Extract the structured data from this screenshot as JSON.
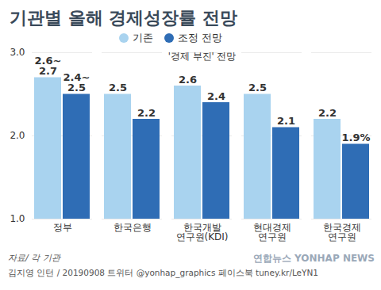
{
  "chart_data": {
    "type": "bar",
    "title": "기관별 올해 경제성장률 전망",
    "categories": [
      "정부",
      "한국은행",
      "한국개발\n연구원(KDI)",
      "현대경제\n연구원",
      "한국경제\n연구원"
    ],
    "series": [
      {
        "name": "기존",
        "color": "#a9d3ef",
        "values": [
          2.7,
          2.5,
          2.6,
          2.5,
          2.2
        ],
        "value_labels": [
          "2.6~\n2.7",
          "2.5",
          "2.6",
          "2.5",
          "2.2"
        ]
      },
      {
        "name": "조정 전망",
        "color": "#2f6db5",
        "values": [
          2.5,
          2.2,
          2.4,
          2.1,
          1.9
        ],
        "value_labels": [
          "2.4~\n2.5",
          "2.2",
          "2.4",
          "2.1",
          "1.9%"
        ]
      }
    ],
    "ylim": [
      1,
      3
    ],
    "yticks": [
      {
        "value": 1,
        "label": "1.0"
      },
      {
        "value": 2,
        "label": "2.0"
      },
      {
        "value": 3,
        "label": "3.0"
      }
    ],
    "grid": true,
    "data_labels": true,
    "legend": "top",
    "annotations": [
      {
        "text": "'경제 부진' 전망",
        "category": "한국개발\n연구원(KDI)"
      }
    ],
    "source": "자료/ 각 기관",
    "credit": "김지영 인턴 / 20190908 트위터 @yonhap_graphics 페이스북 tuney.kr/LeYN1",
    "watermark": "연합뉴스 YONHAP NEWS"
  }
}
